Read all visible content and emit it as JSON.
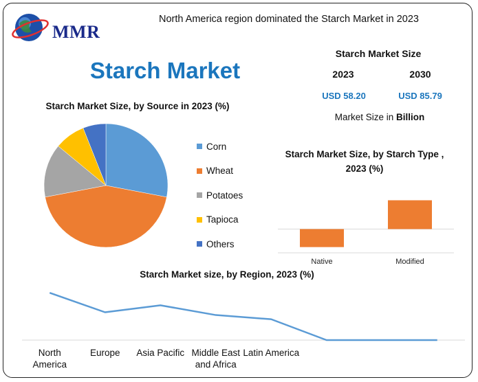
{
  "brand": {
    "logo_text": "MMR"
  },
  "headline": "North America region dominated the Starch Market in 2023",
  "title": "Starch Market",
  "market_size": {
    "title": "Starch Market Size",
    "year_start": "2023",
    "year_end": "2030",
    "value_start": "USD 58.20",
    "value_end": "USD 85.79",
    "unit_prefix": "Market Size in",
    "unit_bold": "Billion"
  },
  "colors": {
    "accent": "#1b76bd",
    "corn": "#5b9bd5",
    "wheat": "#ed7d31",
    "potatoes": "#a5a5a5",
    "tapioca": "#ffc000",
    "others": "#4472c4",
    "line": "#5b9bd5",
    "bar": "#ed7d31"
  },
  "chart_data": [
    {
      "type": "pie",
      "title": "Starch Market Size, by Source in 2023 (%)",
      "categories": [
        "Corn",
        "Wheat",
        "Potatoes",
        "Tapioca",
        "Others"
      ],
      "values": [
        28,
        44,
        14,
        8,
        6
      ],
      "colors": [
        "#5b9bd5",
        "#ed7d31",
        "#a5a5a5",
        "#ffc000",
        "#4472c4"
      ],
      "legend": "right"
    },
    {
      "type": "bar",
      "title": "Starch Market Size, by Starch Type , 2023 (%)",
      "categories": [
        "Native",
        "Modified"
      ],
      "values": [
        -30,
        48
      ],
      "ylim": [
        -35,
        52
      ],
      "grid": false
    },
    {
      "type": "line",
      "title": "Starch Market size, by Region, 2023 (%)",
      "categories": [
        "North America",
        "Europe",
        "Asia Pacific",
        "Middle East and Africa",
        "Latin America",
        "",
        "",
        ""
      ],
      "values": [
        34,
        20,
        25,
        18,
        15,
        0,
        0,
        0
      ],
      "ylim": [
        0,
        40
      ],
      "grid": false
    }
  ]
}
